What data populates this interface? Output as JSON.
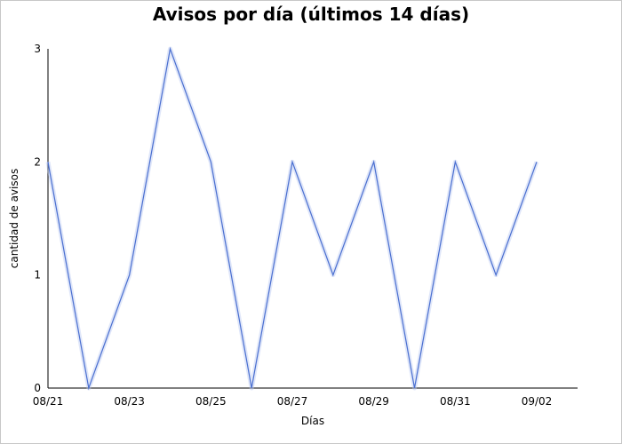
{
  "chart_data": {
    "type": "line",
    "title": "Avisos por día (últimos 14 días)",
    "xlabel": "Días",
    "ylabel": "cantidad de avisos",
    "x": [
      "08/21",
      "08/22",
      "08/23",
      "08/24",
      "08/25",
      "08/26",
      "08/27",
      "08/28",
      "08/29",
      "08/30",
      "08/31",
      "09/01",
      "09/02"
    ],
    "x_tick_labels": [
      "08/21",
      "08/23",
      "08/25",
      "08/27",
      "08/29",
      "08/31",
      "09/02"
    ],
    "series": [
      {
        "values": [
          2,
          0,
          1,
          3,
          2,
          0,
          2,
          1,
          2,
          0,
          2,
          1,
          2
        ],
        "color": "#4a6fd0"
      }
    ],
    "ylim": [
      0,
      3
    ],
    "y_ticks": [
      0,
      1,
      2,
      3
    ],
    "grid": false,
    "legend": "none"
  }
}
